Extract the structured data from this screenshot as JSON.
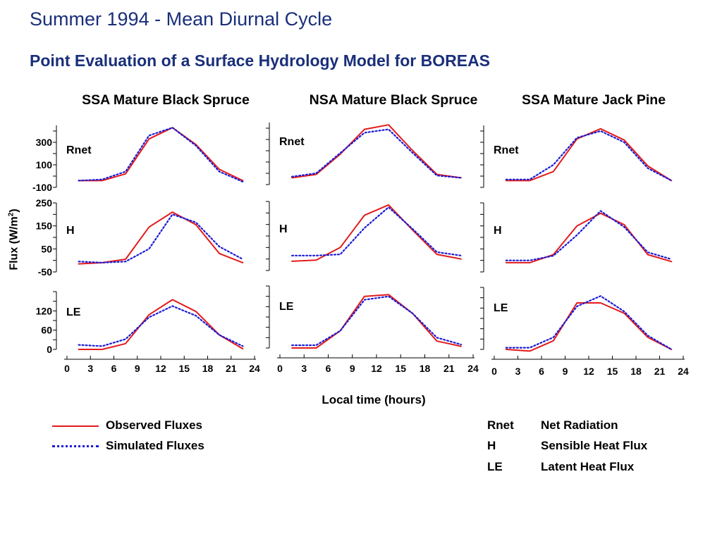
{
  "header": {
    "title": "Summer 1994 - Mean Diurnal Cycle",
    "subtitle": "Point Evaluation of a Surface Hydrology Model for BOREAS"
  },
  "colors": {
    "observed": "#e31b1b",
    "simulated": "#1b1bd6",
    "title": "#1a2f7a"
  },
  "axis": {
    "ylabel_main": "Flux (W/m",
    "ylabel_sup": "2",
    "ylabel_close": ")",
    "xlabel": "Local time (hours)"
  },
  "legend": {
    "observed_label": "Observed Fluxes",
    "simulated_label": "Simulated Fluxes",
    "abbreviations": [
      {
        "abbr": "Rnet",
        "desc": "Net Radiation"
      },
      {
        "abbr": "H",
        "desc": "Sensible Heat Flux"
      },
      {
        "abbr": "LE",
        "desc": "Latent Heat Flux"
      }
    ]
  },
  "chart_data": {
    "type": "line",
    "x_ticks": [
      0,
      3,
      6,
      9,
      12,
      15,
      18,
      21,
      24
    ],
    "xlim": [
      0,
      24
    ],
    "x": [
      1.5,
      4.5,
      7.5,
      10.5,
      13.5,
      16.5,
      19.5,
      22.5
    ],
    "columns": [
      "SSA Mature Black Spruce",
      "NSA Mature Black Spruce",
      "SSA Mature Jack Pine"
    ],
    "rows": [
      {
        "label": "Rnet",
        "ylim": [
          -100,
          450
        ],
        "ticks": [
          -100,
          100,
          300
        ],
        "tick_labels": [
          "-100",
          "100",
          "300"
        ]
      },
      {
        "label": "H",
        "ylim": [
          -50,
          250
        ],
        "ticks": [
          -50,
          50,
          150,
          250
        ],
        "tick_labels": [
          "-50",
          "50",
          "150",
          "250"
        ]
      },
      {
        "label": "LE",
        "ylim": [
          0,
          180
        ],
        "ticks": [
          0,
          60,
          120
        ],
        "tick_labels": [
          "0",
          "60",
          "120"
        ]
      }
    ],
    "panels": [
      [
        {
          "series": [
            {
              "name": "Observed Fluxes",
              "values": [
                -40,
                -40,
                20,
                330,
                430,
                280,
                60,
                -40
              ]
            },
            {
              "name": "Simulated Fluxes",
              "values": [
                -40,
                -30,
                40,
                360,
                430,
                270,
                40,
                -50
              ]
            }
          ]
        },
        {
          "series": [
            {
              "name": "Observed Fluxes",
              "values": [
                -15,
                -10,
                5,
                145,
                210,
                155,
                30,
                -10
              ]
            },
            {
              "name": "Simulated Fluxes",
              "values": [
                -5,
                -10,
                -5,
                50,
                200,
                165,
                60,
                5
              ]
            }
          ]
        },
        {
          "series": [
            {
              "name": "Observed Fluxes",
              "values": [
                0,
                0,
                18,
                108,
                155,
                118,
                45,
                2
              ]
            },
            {
              "name": "Simulated Fluxes",
              "values": [
                14,
                10,
                32,
                100,
                135,
                105,
                45,
                10
              ]
            }
          ]
        }
      ],
      [
        {
          "series": [
            {
              "name": "Observed Fluxes",
              "values": [
                -40,
                -10,
                170,
                390,
                430,
                200,
                -10,
                -40
              ]
            },
            {
              "name": "Simulated Fluxes",
              "values": [
                -30,
                0,
                180,
                360,
                390,
                180,
                -20,
                -40
              ]
            }
          ]
        },
        {
          "series": [
            {
              "name": "Observed Fluxes",
              "values": [
                -10,
                -5,
                50,
                190,
                235,
                125,
                20,
                0
              ]
            },
            {
              "name": "Simulated Fluxes",
              "values": [
                15,
                15,
                20,
                135,
                225,
                130,
                30,
                15
              ]
            }
          ]
        },
        {
          "series": [
            {
              "name": "Observed Fluxes",
              "values": [
                0,
                0,
                50,
                150,
                155,
                100,
                20,
                5
              ]
            },
            {
              "name": "Simulated Fluxes",
              "values": [
                8,
                8,
                50,
                140,
                150,
                100,
                30,
                10
              ]
            }
          ]
        }
      ],
      [
        {
          "series": [
            {
              "name": "Observed Fluxes",
              "values": [
                -40,
                -40,
                40,
                330,
                420,
                320,
                90,
                -40
              ]
            },
            {
              "name": "Simulated Fluxes",
              "values": [
                -30,
                -30,
                100,
                340,
                400,
                300,
                70,
                -40
              ]
            }
          ]
        },
        {
          "series": [
            {
              "name": "Observed Fluxes",
              "values": [
                -10,
                -10,
                25,
                150,
                205,
                155,
                25,
                -5
              ]
            },
            {
              "name": "Simulated Fluxes",
              "values": [
                0,
                0,
                20,
                110,
                215,
                145,
                35,
                5
              ]
            }
          ]
        },
        {
          "series": [
            {
              "name": "Observed Fluxes",
              "values": [
                0,
                -5,
                25,
                135,
                135,
                105,
                35,
                0
              ]
            },
            {
              "name": "Simulated Fluxes",
              "values": [
                5,
                5,
                35,
                125,
                155,
                110,
                40,
                0
              ]
            }
          ]
        }
      ]
    ]
  }
}
